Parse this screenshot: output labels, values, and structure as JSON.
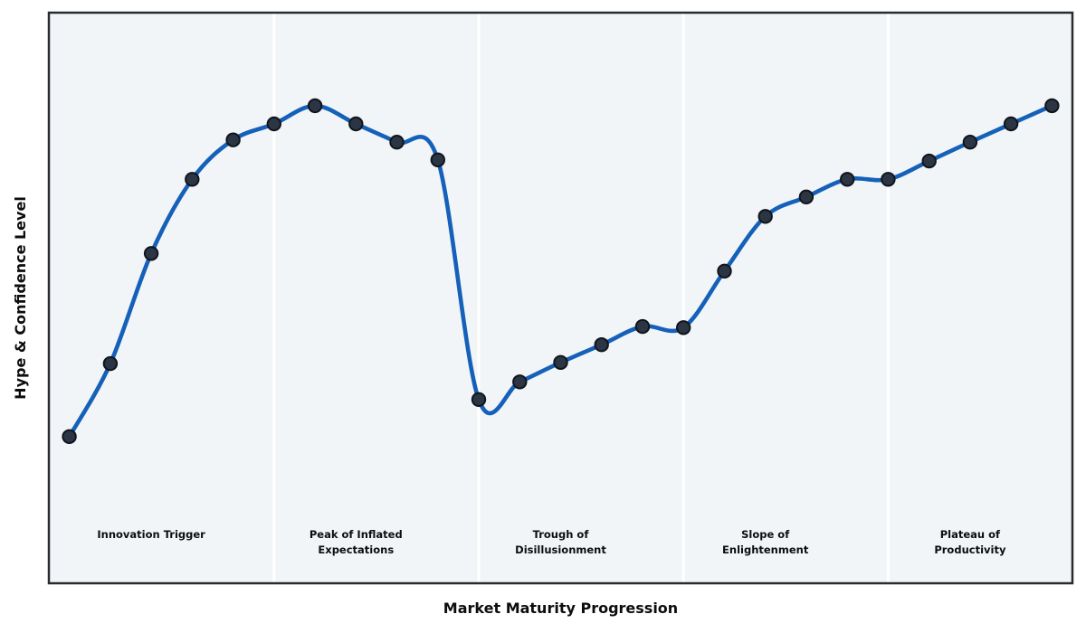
{
  "chart_data": {
    "type": "line",
    "curve": "smooth-spline",
    "title": "",
    "xlabel": "Market Maturity Progression",
    "ylabel": "Hype & Confidence Level",
    "x": [
      1,
      2,
      3,
      4,
      5,
      6,
      7,
      8,
      9,
      10,
      11,
      12,
      13,
      14,
      15,
      16,
      17,
      18,
      19,
      20,
      21,
      22,
      23,
      24,
      25
    ],
    "values": [
      25.7,
      38.5,
      57.8,
      70.8,
      77.7,
      80.5,
      83.7,
      80.5,
      77.3,
      74.2,
      32.2,
      35.3,
      38.7,
      41.8,
      45.0,
      44.8,
      54.7,
      64.3,
      67.7,
      70.8,
      70.8,
      74.0,
      77.3,
      80.5,
      83.7
    ],
    "xlim": [
      0.5,
      25.5
    ],
    "ylim": [
      0,
      100
    ],
    "grid": false,
    "legend": "none",
    "markers": true,
    "phase_dividers_x": [
      6,
      11,
      16,
      21
    ],
    "phases": [
      {
        "label": "Innovation Trigger",
        "center_x": 3
      },
      {
        "label": "Peak of Inflated\nExpectations",
        "center_x": 8
      },
      {
        "label": "Trough of\nDisillusionment",
        "center_x": 13
      },
      {
        "label": "Slope of\nEnlightenment",
        "center_x": 18
      },
      {
        "label": "Plateau of\nProductivity",
        "center_x": 23
      }
    ],
    "colors": {
      "line": "#1560b8",
      "marker_fill": "#2b3544",
      "marker_edge": "#10151c",
      "plot_background": "#f1f5f8",
      "phase_divider": "#ffffff",
      "plot_border": "#282c30",
      "text": "#0d0d0d",
      "figure_background": "#ffffff"
    }
  }
}
